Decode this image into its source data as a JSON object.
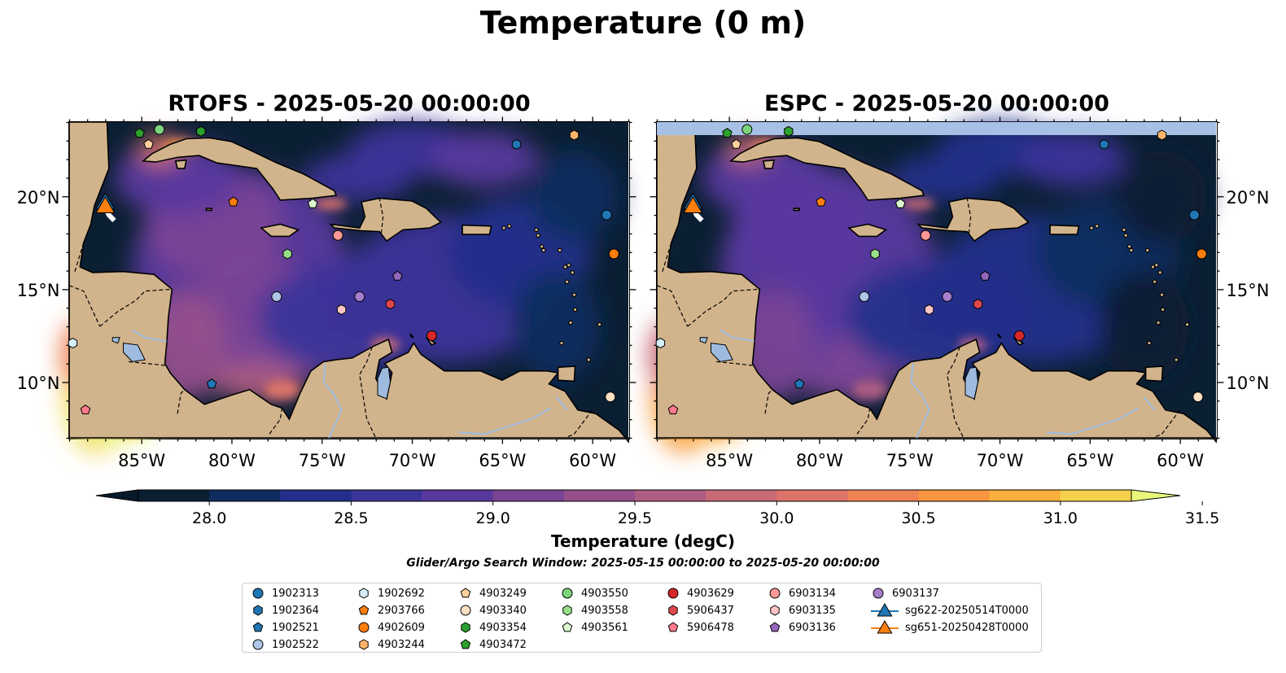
{
  "title": "Temperature (0 m)",
  "panels": [
    {
      "id": "rtofs",
      "title": "RTOFS - 2025-05-20 00:00:00"
    },
    {
      "id": "espc",
      "title": "ESPC - 2025-05-20 00:00:00"
    }
  ],
  "map_extent": {
    "lon_min": -89,
    "lon_max": -58,
    "lat_min": 7,
    "lat_max": 24
  },
  "x_ticks": [
    {
      "lon": -85,
      "label": "85°W"
    },
    {
      "lon": -80,
      "label": "80°W"
    },
    {
      "lon": -75,
      "label": "75°W"
    },
    {
      "lon": -70,
      "label": "70°W"
    },
    {
      "lon": -65,
      "label": "65°W"
    },
    {
      "lon": -60,
      "label": "60°W"
    }
  ],
  "y_ticks": [
    {
      "lat": 20,
      "label": "20°N"
    },
    {
      "lat": 15,
      "label": "15°N"
    },
    {
      "lat": 10,
      "label": "10°N"
    }
  ],
  "colorbar": {
    "title": "Temperature (degC)",
    "min": 27.75,
    "max": 31.5,
    "step": 0.25,
    "tick_values": [
      28.0,
      28.5,
      29.0,
      29.5,
      30.0,
      30.5,
      31.0,
      31.5
    ],
    "tick_labels": [
      "28.0",
      "28.5",
      "29.0",
      "29.5",
      "30.0",
      "30.5",
      "31.0",
      "31.5"
    ],
    "colors": [
      "#0b1f33",
      "#0e2d5e",
      "#232f8a",
      "#3b3499",
      "#59399e",
      "#7a4495",
      "#95508c",
      "#ad5d82",
      "#c76a76",
      "#dd7469",
      "#ee8252",
      "#f79540",
      "#fbaf3c",
      "#f5d04a",
      "#e8f77a"
    ],
    "under_color": "#071a2b"
  },
  "search_window": "Glider/Argo Search Window: 2025-05-15 00:00:00 to 2025-05-20 00:00:00",
  "observations": [
    {
      "id": "1902313",
      "marker": "circle",
      "color": "#1f77b4",
      "lon": -59.2,
      "lat": 19.0
    },
    {
      "id": "1902364",
      "marker": "hexagon",
      "color": "#1f77b4",
      "lon": -64.2,
      "lat": 22.8
    },
    {
      "id": "1902521",
      "marker": "pentagon",
      "color": "#1f77b4",
      "lon": -81.1,
      "lat": 9.9
    },
    {
      "id": "1902522",
      "marker": "circle",
      "color": "#aec7e8",
      "lon": -77.5,
      "lat": 14.6
    },
    {
      "id": "1902692",
      "marker": "hexagon",
      "color": "#d5eef9",
      "lon": -88.8,
      "lat": 12.1
    },
    {
      "id": "2903766",
      "marker": "pentagon",
      "color": "#ff7f0e",
      "lon": -79.9,
      "lat": 19.7
    },
    {
      "id": "4902609",
      "marker": "circle",
      "color": "#ff7f0e",
      "lon": -58.8,
      "lat": 16.9
    },
    {
      "id": "4903244",
      "marker": "hexagon",
      "color": "#ffb36b",
      "lon": -61.0,
      "lat": 23.3
    },
    {
      "id": "4903249",
      "marker": "pentagon",
      "color": "#ffcf9e",
      "lon": -84.6,
      "lat": 22.8
    },
    {
      "id": "4903340",
      "marker": "circle",
      "color": "#ffe1c4",
      "lon": -59.0,
      "lat": 9.2
    },
    {
      "id": "4903354",
      "marker": "hexagon",
      "color": "#2ca02c",
      "lon": -81.7,
      "lat": 23.5
    },
    {
      "id": "4903472",
      "marker": "pentagon",
      "color": "#2ca02c",
      "lon": -85.1,
      "lat": 23.4
    },
    {
      "id": "4903550",
      "marker": "circle",
      "color": "#7dd37d",
      "lon": -84.0,
      "lat": 23.6
    },
    {
      "id": "4903558",
      "marker": "hexagon",
      "color": "#98df8a",
      "lon": -76.9,
      "lat": 16.9
    },
    {
      "id": "4903561",
      "marker": "pentagon",
      "color": "#dbf7cf",
      "lon": -75.5,
      "lat": 19.6
    },
    {
      "id": "4903629",
      "marker": "circle",
      "color": "#d62728",
      "lon": -68.9,
      "lat": 12.5
    },
    {
      "id": "5906437",
      "marker": "hexagon",
      "color": "#e0474c",
      "lon": -71.2,
      "lat": 14.2
    },
    {
      "id": "5906478",
      "marker": "pentagon",
      "color": "#ff7a8a",
      "lon": -88.1,
      "lat": 8.5
    },
    {
      "id": "6903134",
      "marker": "circle",
      "color": "#ff9896",
      "lon": -74.1,
      "lat": 17.9
    },
    {
      "id": "6903135",
      "marker": "hexagon",
      "color": "#ffc5c4",
      "lon": -73.9,
      "lat": 13.9
    },
    {
      "id": "6903136",
      "marker": "pentagon",
      "color": "#9467bd",
      "lon": -70.8,
      "lat": 15.7
    },
    {
      "id": "6903137",
      "marker": "circle",
      "color": "#a57fcc",
      "lon": -72.9,
      "lat": 14.6
    },
    {
      "id": "sg622-20250514T0000",
      "marker": "triangle",
      "color": "#1f77b4",
      "lon": -87.0,
      "lat": 19.6
    },
    {
      "id": "sg651-20250428T0000",
      "marker": "triangle",
      "color": "#ff7f0e",
      "lon": -87.0,
      "lat": 19.4
    }
  ]
}
